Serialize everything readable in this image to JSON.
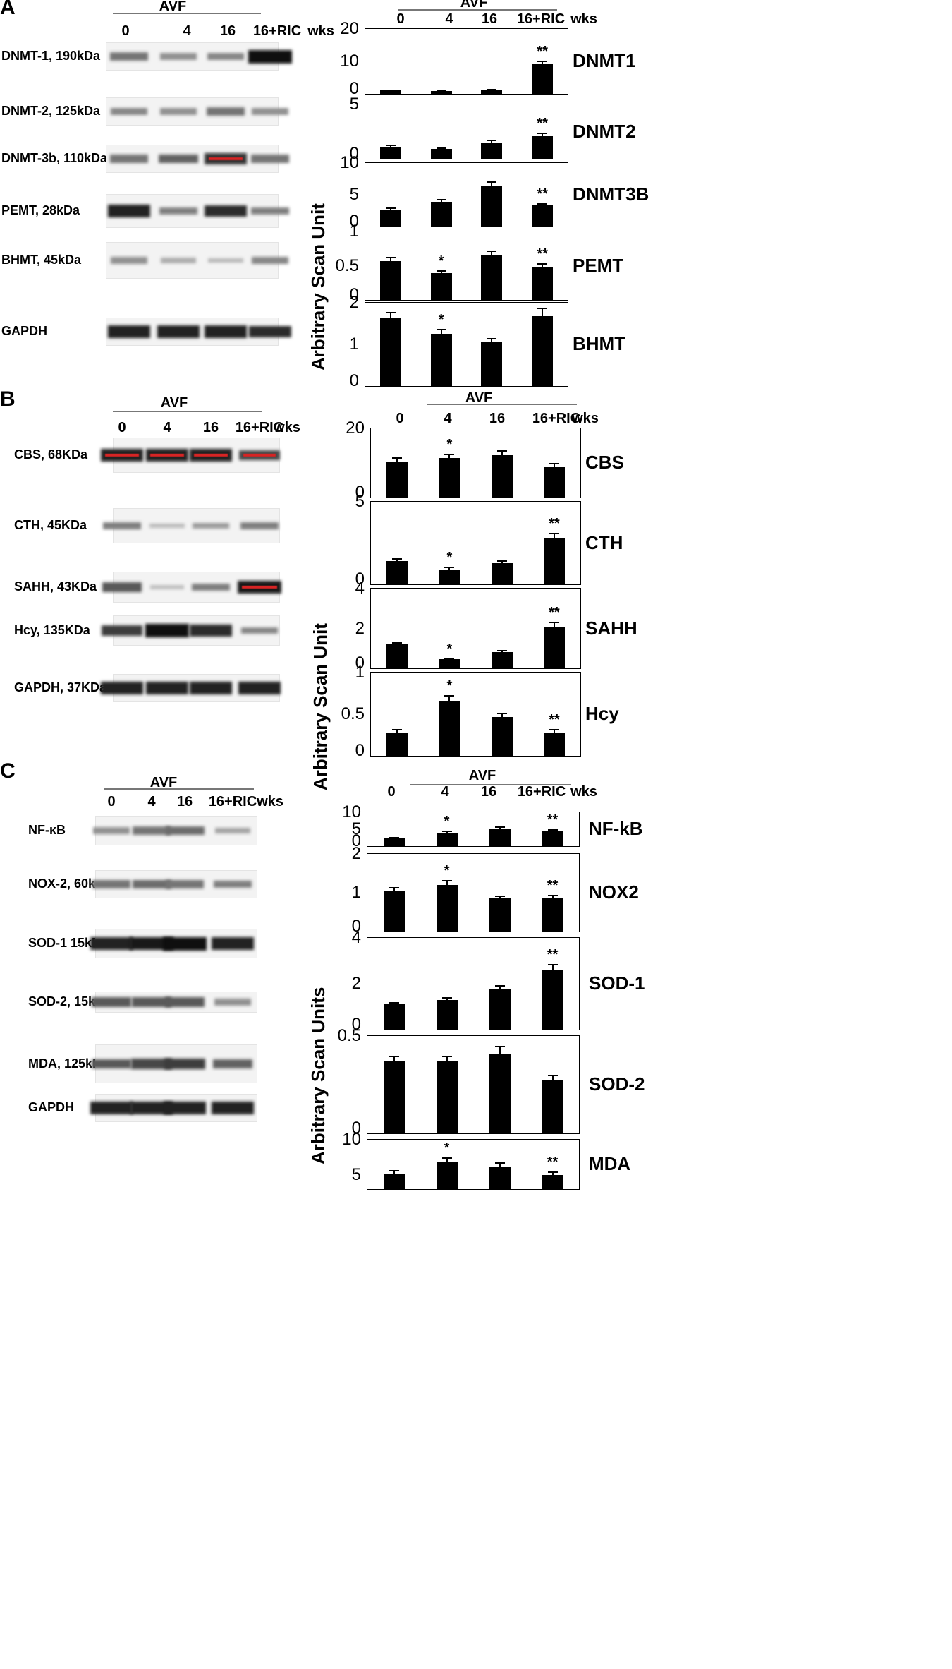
{
  "panels": [
    {
      "letter": "A",
      "blot_header": {
        "title": "AVF",
        "lanes": [
          "0",
          "4",
          "16",
          "16+RIC"
        ],
        "unit": "wks"
      },
      "chart_header": {
        "title": "AVF",
        "lanes": [
          "0",
          "4",
          "16",
          "16+RIC"
        ],
        "unit": "wks"
      },
      "blots": [
        {
          "label": "DNMT-1, 190kDa",
          "intensity": [
            0.45,
            0.3,
            0.35,
            1.0
          ]
        },
        {
          "label": "DNMT-2, 125kDa",
          "intensity": [
            0.35,
            0.3,
            0.45,
            0.3
          ]
        },
        {
          "label": "DNMT-3b, 110kDa",
          "intensity": [
            0.45,
            0.55,
            0.8,
            0.45
          ],
          "red_lanes": [
            2
          ]
        },
        {
          "label": "PEMT, 28kDa",
          "intensity": [
            0.9,
            0.4,
            0.85,
            0.4
          ]
        },
        {
          "label": "BHMT, 45kDa",
          "intensity": [
            0.3,
            0.15,
            0.1,
            0.35
          ]
        },
        {
          "label": "GAPDH",
          "intensity": [
            0.9,
            0.9,
            0.9,
            0.85
          ]
        }
      ],
      "y_axis_title": "Arbitrary Scan Unit"
    },
    {
      "letter": "B",
      "blot_header": {
        "title": "AVF",
        "lanes": [
          "0",
          "4",
          "16",
          "16+RIC"
        ],
        "unit": "wks"
      },
      "chart_header": {
        "title": "AVF",
        "lanes": [
          "0",
          "4",
          "16",
          "16+RIC"
        ],
        "unit": "wks"
      },
      "blots": [
        {
          "label": "CBS, 68KDa",
          "intensity": [
            0.9,
            0.9,
            0.9,
            0.7
          ],
          "red_lanes": [
            0,
            1,
            2,
            3
          ]
        },
        {
          "label": "CTH, 45KDa",
          "intensity": [
            0.4,
            0.08,
            0.25,
            0.4
          ]
        },
        {
          "label": "SAHH, 43KDa",
          "intensity": [
            0.6,
            0.05,
            0.4,
            0.95
          ],
          "red_lanes": [
            3
          ]
        },
        {
          "label": "Hcy, 135KDa",
          "intensity": [
            0.75,
            1.0,
            0.85,
            0.35
          ]
        },
        {
          "label": "GAPDH, 37KDa",
          "intensity": [
            0.9,
            0.9,
            0.9,
            0.9
          ]
        }
      ],
      "y_axis_title": "Arbitrary Scan Unit"
    },
    {
      "letter": "C",
      "blot_header": {
        "title": "AVF",
        "lanes": [
          "0",
          "4",
          "16",
          "16+RIC"
        ],
        "unit": "wks"
      },
      "chart_header": {
        "title": "AVF",
        "lanes": [
          "0",
          "4",
          "16",
          "16+RIC"
        ],
        "unit": "wks"
      },
      "blots": [
        {
          "label": "NF-κB",
          "intensity": [
            0.3,
            0.45,
            0.5,
            0.2
          ]
        },
        {
          "label": "NOX-2, 60kDa",
          "intensity": [
            0.45,
            0.5,
            0.45,
            0.4
          ]
        },
        {
          "label": "SOD-1 15kDa",
          "intensity": [
            0.9,
            0.95,
            1.0,
            0.9
          ]
        },
        {
          "label": "SOD-2, 15kDa",
          "intensity": [
            0.6,
            0.6,
            0.6,
            0.3
          ]
        },
        {
          "label": "MDA, 125kDa",
          "intensity": [
            0.6,
            0.7,
            0.75,
            0.55
          ]
        },
        {
          "label": "GAPDH",
          "intensity": [
            0.9,
            0.9,
            0.9,
            0.9
          ]
        }
      ],
      "y_axis_title": "Arbitrary Scan Units"
    }
  ],
  "chart_data": [
    {
      "type": "bar",
      "panel": "A",
      "title": "DNMT1",
      "categories": [
        "0",
        "4",
        "16",
        "16+RIC"
      ],
      "values": [
        1.0,
        0.8,
        1.3,
        9.2
      ],
      "errors": [
        0.3,
        0.2,
        0.3,
        1.0
      ],
      "significance": [
        "",
        "",
        "",
        "**"
      ],
      "yticks": [
        "0",
        "10",
        "20"
      ],
      "ylim": [
        0,
        20
      ]
    },
    {
      "type": "bar",
      "panel": "A",
      "title": "DNMT2",
      "categories": [
        "0",
        "4",
        "16",
        "16+RIC"
      ],
      "values": [
        1.1,
        0.9,
        1.5,
        2.1
      ],
      "errors": [
        0.2,
        0.15,
        0.25,
        0.3
      ],
      "significance": [
        "",
        "",
        "",
        "**"
      ],
      "yticks": [
        "0",
        "5"
      ],
      "ylim": [
        0,
        5
      ]
    },
    {
      "type": "bar",
      "panel": "A",
      "title": "DNMT3B",
      "categories": [
        "0",
        "4",
        "16",
        "16+RIC"
      ],
      "values": [
        2.7,
        3.9,
        6.4,
        3.3
      ],
      "errors": [
        0.3,
        0.4,
        0.7,
        0.4
      ],
      "significance": [
        "",
        "",
        "",
        "**"
      ],
      "yticks": [
        "0",
        "5",
        "10"
      ],
      "ylim": [
        0,
        10
      ]
    },
    {
      "type": "bar",
      "panel": "A",
      "title": "PEMT",
      "categories": [
        "0",
        "4",
        "16",
        "16+RIC"
      ],
      "values": [
        0.57,
        0.39,
        0.65,
        0.48
      ],
      "errors": [
        0.06,
        0.04,
        0.07,
        0.06
      ],
      "significance": [
        "",
        "*",
        "",
        "**"
      ],
      "yticks": [
        "0",
        "0.5",
        "1"
      ],
      "ylim": [
        0,
        1
      ]
    },
    {
      "type": "bar",
      "panel": "A",
      "title": "BHMT",
      "categories": [
        "0",
        "4",
        "16",
        "16+RIC"
      ],
      "values": [
        1.65,
        1.25,
        1.05,
        1.68
      ],
      "errors": [
        0.13,
        0.12,
        0.1,
        0.2
      ],
      "significance": [
        "",
        "*",
        "",
        "**"
      ],
      "yticks": [
        "0",
        "1",
        "2"
      ],
      "ylim": [
        0,
        2
      ]
    },
    {
      "type": "bar",
      "panel": "B",
      "title": "CBS",
      "categories": [
        "0",
        "4",
        "16",
        "16+RIC"
      ],
      "values": [
        10.5,
        11.5,
        12.3,
        8.8
      ],
      "errors": [
        1.2,
        1.2,
        1.4,
        1.1
      ],
      "significance": [
        "",
        "*",
        "",
        ""
      ],
      "yticks": [
        "0",
        "20"
      ],
      "ylim": [
        0,
        20
      ]
    },
    {
      "type": "bar",
      "panel": "B",
      "title": "CTH",
      "categories": [
        "0",
        "4",
        "16",
        "16+RIC"
      ],
      "values": [
        1.4,
        0.9,
        1.3,
        2.8
      ],
      "errors": [
        0.2,
        0.15,
        0.15,
        0.3
      ],
      "significance": [
        "",
        "*",
        "",
        "**"
      ],
      "yticks": [
        "0",
        "5"
      ],
      "ylim": [
        0,
        5
      ]
    },
    {
      "type": "bar",
      "panel": "B",
      "title": "SAHH",
      "categories": [
        "0",
        "4",
        "16",
        "16+RIC"
      ],
      "values": [
        1.2,
        0.45,
        0.8,
        2.1
      ],
      "errors": [
        0.12,
        0.06,
        0.12,
        0.25
      ],
      "significance": [
        "",
        "*",
        "",
        "**"
      ],
      "yticks": [
        "0",
        "2",
        "4"
      ],
      "ylim": [
        0,
        4
      ]
    },
    {
      "type": "bar",
      "panel": "B",
      "title": "Hcy",
      "categories": [
        "0",
        "4",
        "16",
        "16+RIC"
      ],
      "values": [
        0.28,
        0.66,
        0.47,
        0.28
      ],
      "errors": [
        0.04,
        0.07,
        0.05,
        0.04
      ],
      "significance": [
        "",
        "*",
        "",
        "**"
      ],
      "yticks": [
        "0",
        "0.5",
        "1"
      ],
      "ylim": [
        0,
        1
      ]
    },
    {
      "type": "bar",
      "panel": "C",
      "title": "NF-kB",
      "categories": [
        "0",
        "4",
        "16",
        "16+RIC"
      ],
      "values": [
        2.5,
        4.0,
        5.3,
        4.3
      ],
      "errors": [
        0.3,
        0.5,
        0.5,
        0.6
      ],
      "significance": [
        "",
        "*",
        "",
        "**"
      ],
      "yticks": [
        "0",
        "5",
        "10"
      ],
      "ylim": [
        0,
        10
      ]
    },
    {
      "type": "bar",
      "panel": "C",
      "title": "NOX2",
      "categories": [
        "0",
        "4",
        "16",
        "16+RIC"
      ],
      "values": [
        1.05,
        1.2,
        0.85,
        0.85
      ],
      "errors": [
        0.1,
        0.12,
        0.08,
        0.1
      ],
      "significance": [
        "",
        "*",
        "",
        "**"
      ],
      "yticks": [
        "0",
        "1",
        "2"
      ],
      "ylim": [
        0,
        2
      ]
    },
    {
      "type": "bar",
      "panel": "C",
      "title": "SOD-1",
      "categories": [
        "0",
        "4",
        "16",
        "16+RIC"
      ],
      "values": [
        1.1,
        1.3,
        1.8,
        2.6
      ],
      "errors": [
        0.1,
        0.12,
        0.15,
        0.25
      ],
      "significance": [
        "",
        "",
        "",
        "**"
      ],
      "yticks": [
        "0",
        "2",
        "4"
      ],
      "ylim": [
        0,
        4
      ]
    },
    {
      "type": "bar",
      "panel": "C",
      "title": "SOD-2",
      "categories": [
        "0",
        "4",
        "16",
        "16+RIC"
      ],
      "values": [
        0.37,
        0.37,
        0.41,
        0.27
      ],
      "errors": [
        0.03,
        0.03,
        0.04,
        0.03
      ],
      "significance": [
        "",
        "",
        "",
        ""
      ],
      "yticks": [
        "0",
        "0.5"
      ],
      "ylim": [
        0,
        0.5
      ]
    },
    {
      "type": "bar",
      "panel": "C",
      "title": "MDA",
      "categories": [
        "0",
        "4",
        "16",
        "16+RIC"
      ],
      "values": [
        5.2,
        6.8,
        6.2,
        5.0
      ],
      "errors": [
        0.5,
        0.7,
        0.6,
        0.5
      ],
      "significance": [
        "",
        "*",
        "",
        "**"
      ],
      "yticks": [
        "5",
        "10"
      ],
      "ylim": [
        3,
        10
      ]
    }
  ]
}
